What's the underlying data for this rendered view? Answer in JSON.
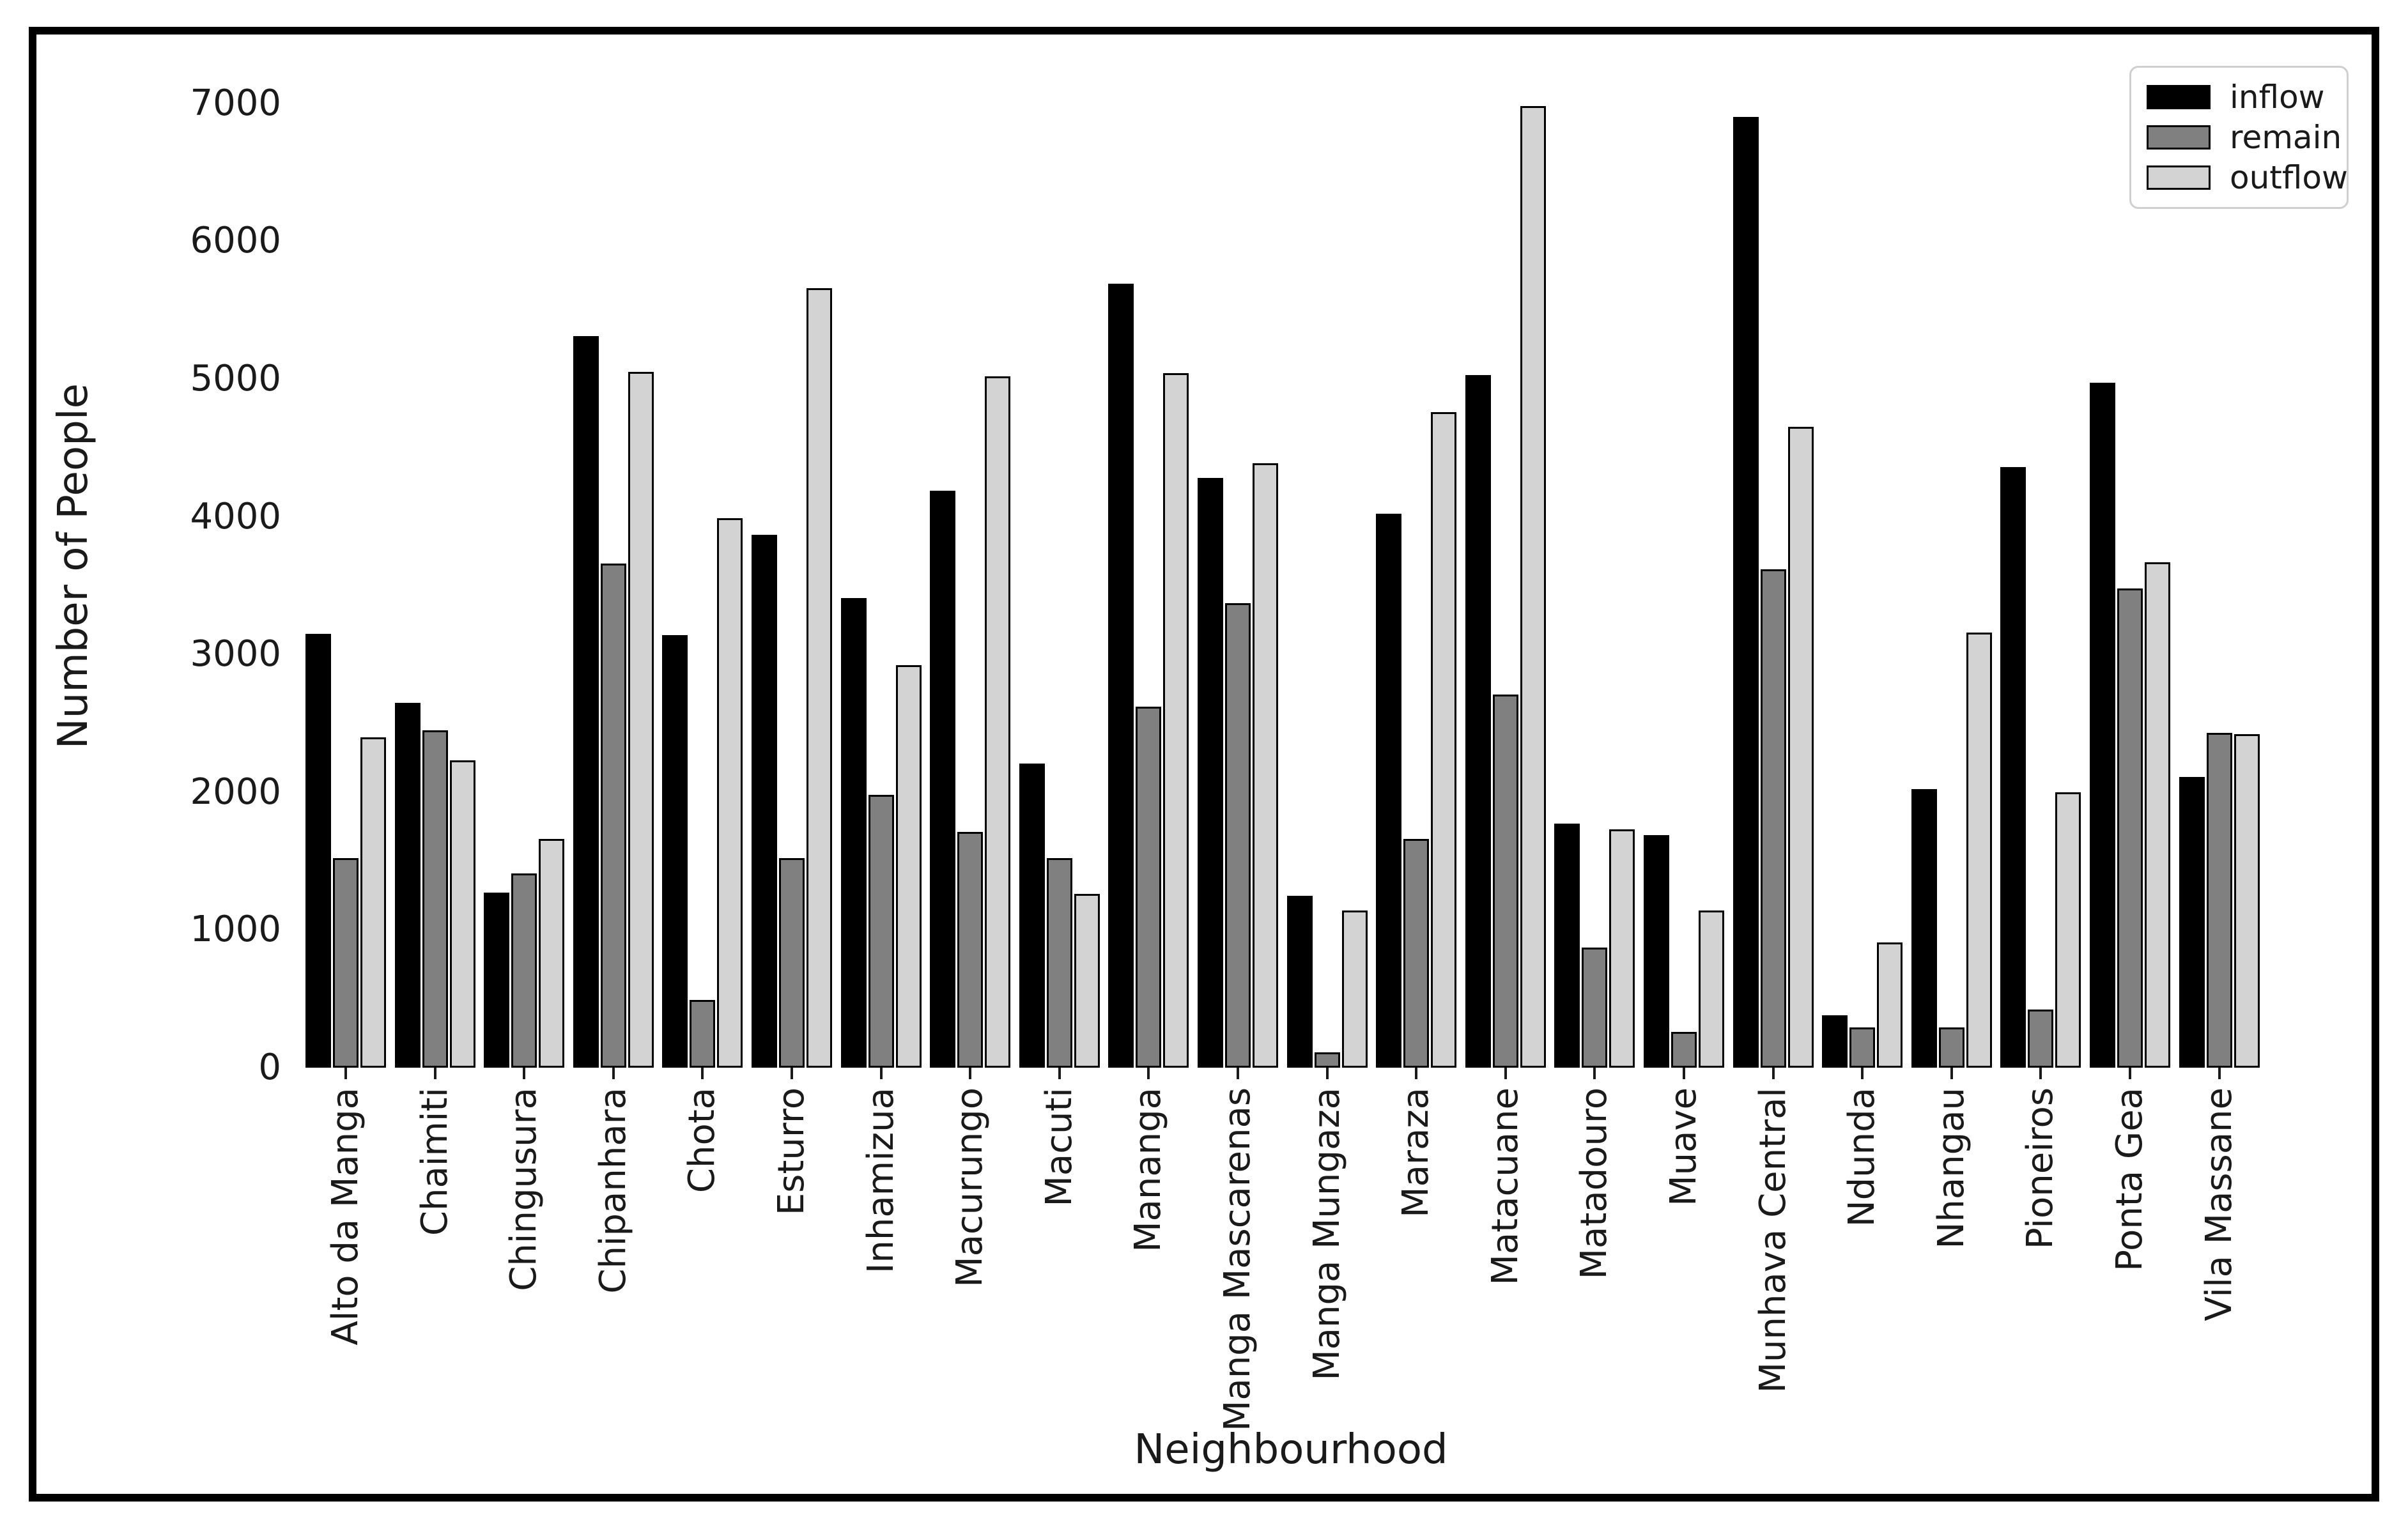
{
  "figure": {
    "background": "#ffffff",
    "frame_color": "#000000",
    "text_color": "#1a1a1a"
  },
  "chart_data": {
    "type": "bar",
    "title": "",
    "xlabel": "Neighbourhood",
    "ylabel": "Number of People",
    "ylim": [
      0,
      7280
    ],
    "yticks": [
      0,
      1000,
      2000,
      3000,
      4000,
      5000,
      6000,
      7000
    ],
    "grid": false,
    "legend_position": "upper right",
    "bar_edge_color": "#000000",
    "categories": [
      "Alto da Manga",
      "Chaimiti",
      "Chingusura",
      "Chipanhara",
      "Chota",
      "Esturro",
      "Inhamizua",
      "Macurungo",
      "Macuti",
      "Mananga",
      "Manga Mascarenas",
      "Manga Mungaza",
      "Maraza",
      "Matacuane",
      "Matadouro",
      "Muave",
      "Munhava Central",
      "Ndunda",
      "Nhangau",
      "Pioneiros",
      "Ponta Gea",
      "Vila Massane"
    ],
    "series": [
      {
        "name": "inflow",
        "color": "#000000",
        "values": [
          3150,
          2650,
          1270,
          5310,
          3140,
          3870,
          3410,
          4190,
          2210,
          5690,
          4280,
          1250,
          4020,
          5030,
          1770,
          1690,
          6900,
          380,
          2020,
          4360,
          4970,
          2110
        ]
      },
      {
        "name": "remain",
        "color": "#808080",
        "values": [
          1520,
          2450,
          1410,
          3660,
          490,
          1520,
          1980,
          1710,
          1520,
          2620,
          3370,
          110,
          1660,
          2710,
          870,
          260,
          3620,
          290,
          290,
          420,
          3480,
          2430
        ]
      },
      {
        "name": "outflow",
        "color": "#d3d3d3",
        "values": [
          2400,
          2230,
          1660,
          5050,
          3990,
          5660,
          2920,
          5020,
          1260,
          5040,
          4390,
          1140,
          4760,
          6980,
          1730,
          1140,
          4650,
          910,
          3160,
          2000,
          3670,
          2420
        ]
      }
    ]
  }
}
